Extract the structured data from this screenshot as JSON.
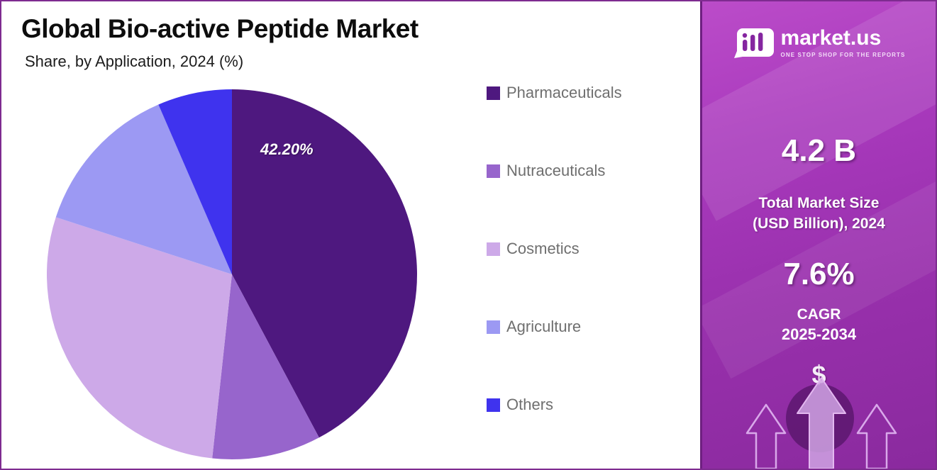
{
  "header": {
    "title": "Global Bio-active Peptide Market",
    "subtitle": "Share, by Application, 2024 (%)"
  },
  "chart_data": {
    "type": "pie",
    "title": "Global Bio-active Peptide Market",
    "subtitle": "Share, by Application, 2024 (%)",
    "unit": "percent",
    "start_angle_deg": 0,
    "direction": "clockwise",
    "legend_position": "right",
    "slices": [
      {
        "label": "Pharmaceuticals",
        "value": 42.2,
        "color": "#4e187f",
        "data_label": "42.20%"
      },
      {
        "label": "Nutraceuticals",
        "value": 9.5,
        "color": "#9765cc",
        "data_label": ""
      },
      {
        "label": "Cosmetics",
        "value": 28.3,
        "color": "#cda9e8",
        "data_label": ""
      },
      {
        "label": "Agriculture",
        "value": 13.5,
        "color": "#9c99f3",
        "data_label": ""
      },
      {
        "label": "Others",
        "value": 6.5,
        "color": "#3f33ee",
        "data_label": ""
      }
    ]
  },
  "brand": {
    "name": "market.us",
    "tagline": "ONE STOP SHOP FOR THE REPORTS"
  },
  "stats": {
    "market_size_value": "4.2 B",
    "market_size_label_line1": "Total Market Size",
    "market_size_label_line2": "(USD Billion), 2024",
    "cagr_value": "7.6%",
    "cagr_label": "CAGR",
    "cagr_period": "2025-2034",
    "currency_symbol": "$"
  },
  "colors": {
    "page_border": "#7e2b90",
    "panel_gradient_top": "#bb4cc9",
    "panel_gradient_bottom": "#8a2a9e",
    "legend_text": "#6f6f6f"
  }
}
